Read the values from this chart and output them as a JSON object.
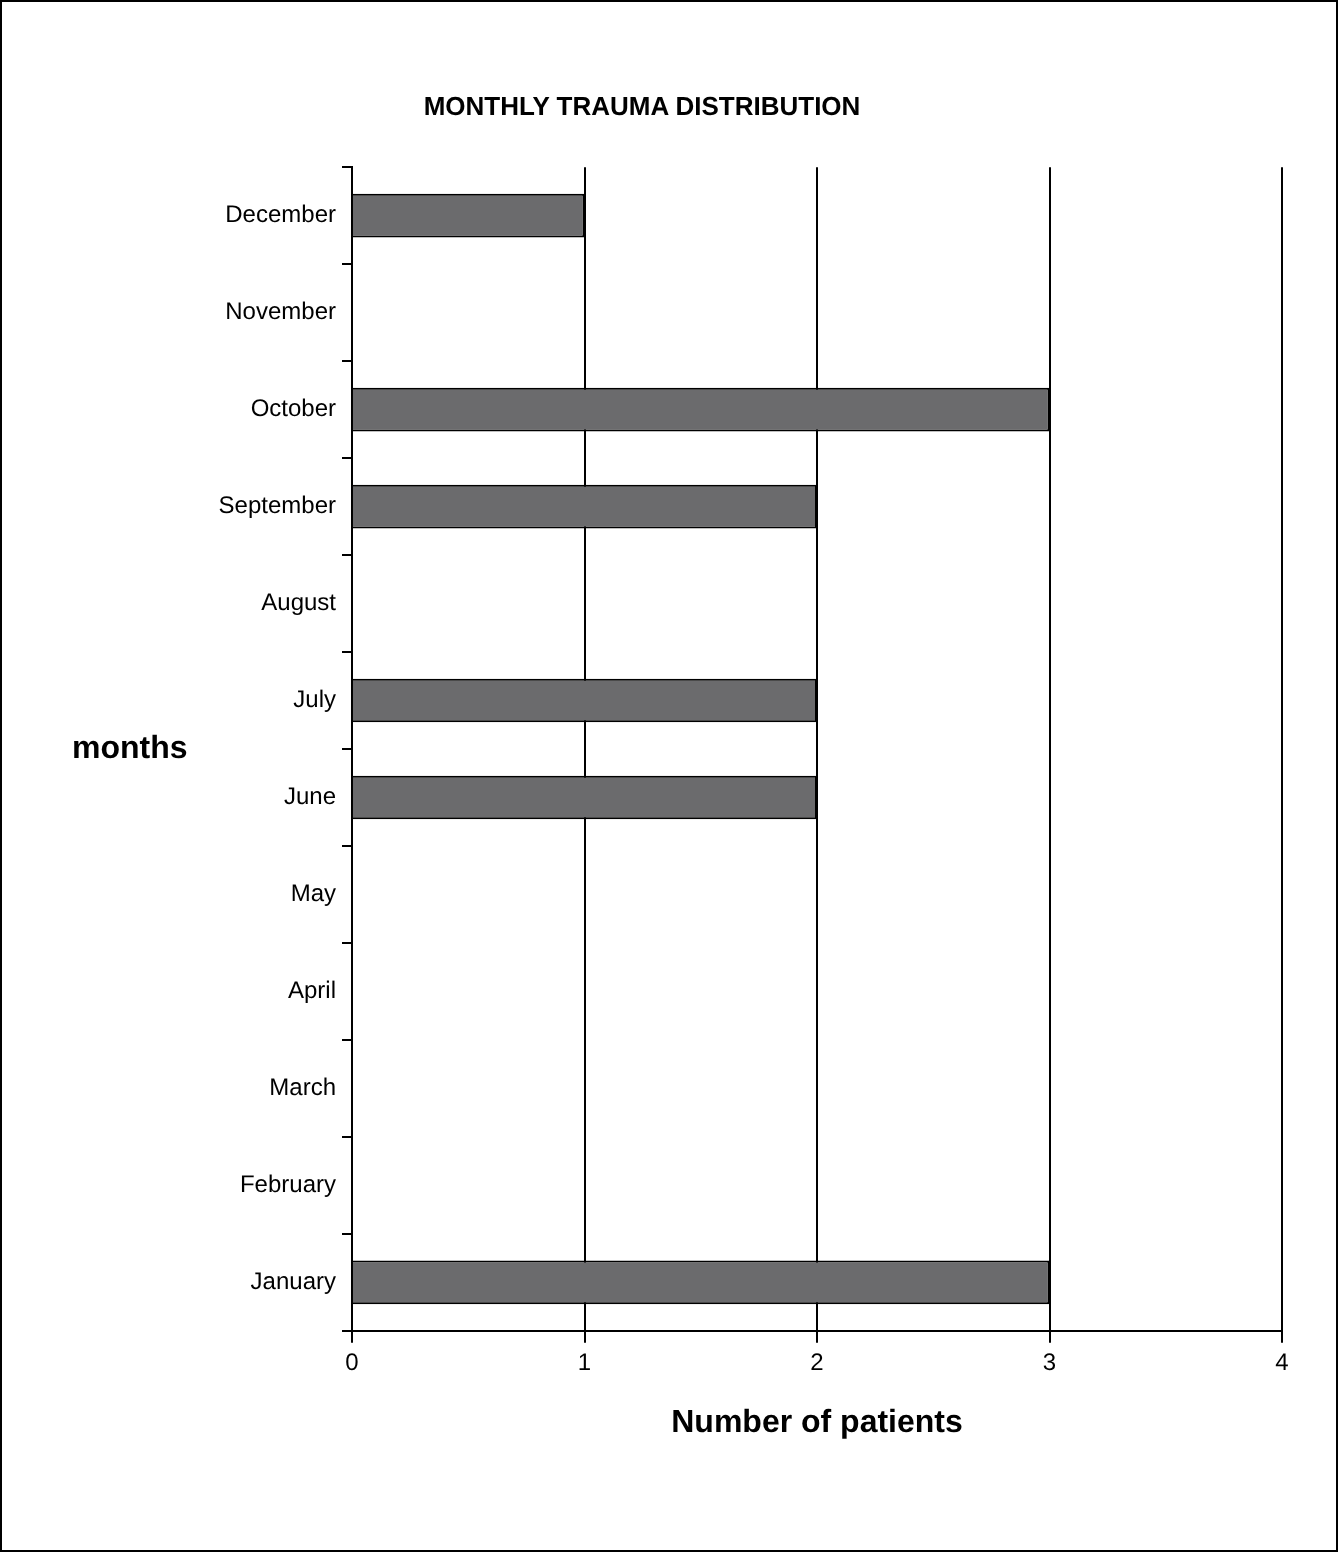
{
  "chart_data": {
    "type": "bar",
    "orientation": "horizontal",
    "title": "MONTHLY TRAUMA DISTRIBUTION",
    "xlabel": "Number of patients",
    "ylabel": "months",
    "categories": [
      "December",
      "November",
      "October",
      "September",
      "August",
      "July",
      "June",
      "May",
      "April",
      "March",
      "February",
      "January"
    ],
    "values": [
      1,
      0,
      3,
      2,
      0,
      2,
      2,
      0,
      0,
      0,
      0,
      3
    ],
    "color": "#6b6b6d",
    "xlim": [
      0,
      4
    ],
    "xticks": [
      0,
      1,
      2,
      3,
      4
    ],
    "grid": "x",
    "legend": false
  }
}
